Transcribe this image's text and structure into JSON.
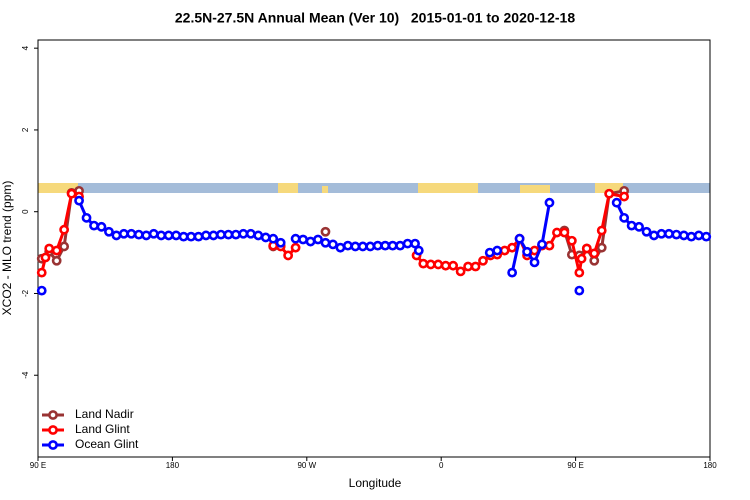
{
  "chart_data": {
    "type": "line",
    "title": "22.5N-27.5N Annual Mean (Ver 10)   2015-01-01 to 2020-12-18",
    "x_label": "Longitude",
    "y_label": "XCO2 - MLO trend (ppm)",
    "xlim": [
      90,
      540
    ],
    "ylim": [
      -6,
      4.2
    ],
    "xticks": [
      {
        "value": 90,
        "label": "90 E"
      },
      180,
      {
        "value": 270,
        "label": "90 W"
      },
      {
        "value": 360,
        "label": "0"
      },
      {
        "value": 450,
        "label": "90 E"
      },
      {
        "value": 540,
        "label": "180"
      }
    ],
    "yticks": [
      -4,
      -2,
      0,
      2,
      4
    ],
    "legend": "bottom-left",
    "series": [
      {
        "name": "Land Nadir",
        "color": "#993333",
        "x": [
          92.5,
          97.5,
          102.5,
          107.5,
          112.5,
          117.5,
          122.5,
          247.5,
          252.5,
          257.5,
          282.5,
          287.5,
          442.5,
          447.5,
          452.5,
          457.5,
          462.5,
          467.5,
          472.5,
          482.5
        ],
        "values": [
          -1.15,
          -0.98,
          -1.2,
          -0.85,
          0.46,
          0.51,
          null,
          -0.85,
          -0.83,
          null,
          -0.49,
          null,
          -0.46,
          -1.05,
          -1.07,
          -0.9,
          -1.2,
          -0.88,
          0.44,
          0.51
        ]
      },
      {
        "name": "Land Glint",
        "color": "#ff0000",
        "x": [
          92.5,
          95,
          97.5,
          102.5,
          107.5,
          112.5,
          117.5,
          122.5,
          247.5,
          252.5,
          257.5,
          262.5,
          267.5,
          343.5,
          348,
          353,
          358,
          363,
          368,
          373,
          378,
          383,
          388,
          393,
          397.5,
          402.5,
          407.5,
          412.5,
          417.5,
          422.5,
          427.5,
          432.5,
          437.5,
          442.5,
          447.5,
          452.5,
          454,
          457.5,
          462.5,
          467.5,
          472.5,
          482.5
        ],
        "values": [
          -1.49,
          -1.12,
          -0.9,
          -0.95,
          -0.44,
          0.44,
          0.37,
          null,
          -0.83,
          -0.85,
          -1.07,
          -0.88,
          null,
          -1.07,
          -1.27,
          -1.29,
          -1.29,
          -1.32,
          -1.32,
          -1.46,
          -1.34,
          -1.34,
          -1.2,
          -1.07,
          -1.05,
          -0.95,
          -0.88,
          -0.66,
          -1.07,
          -0.95,
          -0.83,
          -0.83,
          -0.51,
          -0.51,
          -0.71,
          -1.49,
          -1.15,
          -0.9,
          -1.02,
          -0.46,
          0.44,
          0.37
        ]
      },
      {
        "name": "Ocean Glint",
        "color": "#0000ff",
        "x": [
          92.5,
          112.5,
          117.5,
          122.5,
          127.5,
          132.5,
          137.5,
          142.5,
          147.5,
          152.5,
          157.5,
          162.5,
          167.5,
          172.5,
          177.5,
          182.5,
          187.5,
          192.5,
          197.5,
          202.5,
          207.5,
          212.5,
          217.5,
          222.5,
          227.5,
          232.5,
          237.5,
          242.5,
          247.5,
          252.5,
          257.5,
          262.5,
          267.5,
          272.5,
          277.5,
          282.5,
          287.5,
          292.5,
          297.5,
          302.5,
          307.5,
          312.5,
          317.5,
          322.5,
          327.5,
          332.5,
          337.5,
          342.5,
          345,
          350,
          392.5,
          397.5,
          402.5,
          407.5,
          412.5,
          417.5,
          422.5,
          427.5,
          432.5,
          437.5,
          452.5,
          457.5,
          477.5,
          482.5,
          487.5,
          492.5,
          497.5,
          502.5,
          507.5,
          512.5,
          517.5,
          522.5,
          527.5,
          532.5,
          537.5
        ],
        "values": [
          -1.93,
          null,
          0.27,
          -0.15,
          -0.34,
          -0.37,
          -0.49,
          -0.58,
          -0.54,
          -0.54,
          -0.56,
          -0.58,
          -0.54,
          -0.58,
          -0.58,
          -0.58,
          -0.61,
          -0.61,
          -0.61,
          -0.58,
          -0.58,
          -0.56,
          -0.56,
          -0.56,
          -0.54,
          -0.54,
          -0.58,
          -0.63,
          -0.66,
          -0.76,
          null,
          -0.66,
          -0.68,
          -0.73,
          -0.68,
          -0.76,
          -0.8,
          -0.88,
          -0.83,
          -0.85,
          -0.85,
          -0.85,
          -0.83,
          -0.83,
          -0.83,
          -0.83,
          -0.78,
          -0.78,
          -0.95,
          null,
          -1.0,
          -0.95,
          null,
          -1.49,
          -0.66,
          -0.98,
          -1.24,
          -0.8,
          0.22,
          null,
          -1.93,
          null,
          0.22,
          -0.15,
          -0.34,
          -0.37,
          -0.49,
          -0.58,
          -0.54,
          -0.54,
          -0.56,
          -0.58,
          -0.61,
          -0.58,
          -0.61
        ]
      }
    ]
  }
}
